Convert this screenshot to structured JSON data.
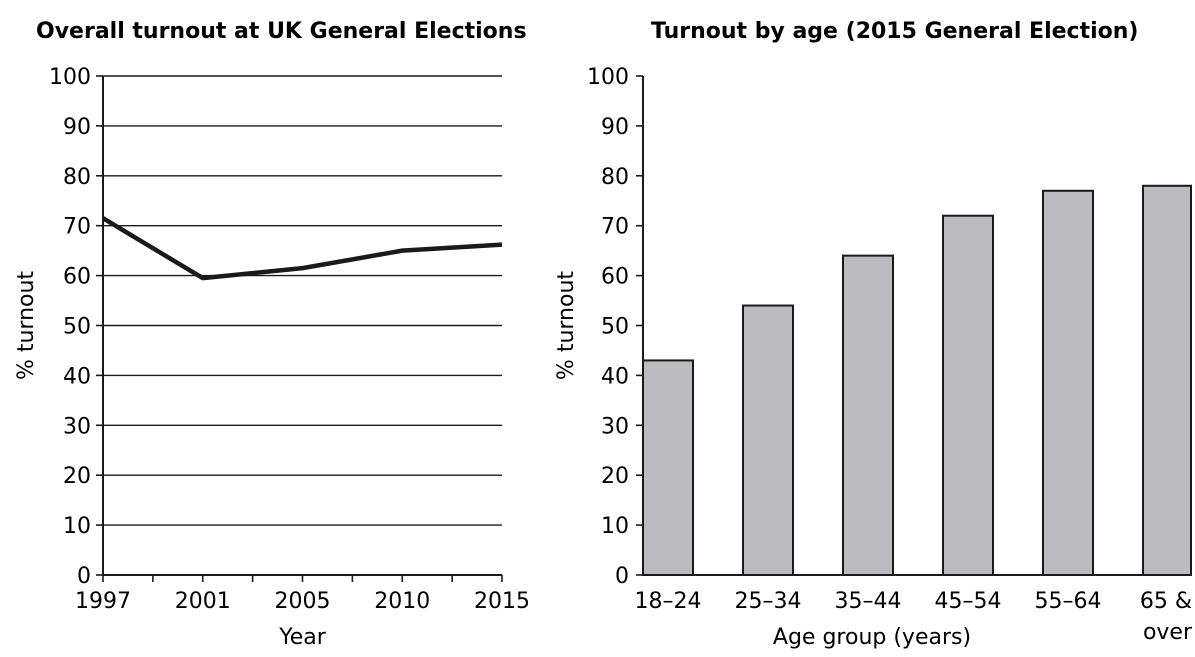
{
  "chart_data": [
    {
      "type": "line",
      "title": "Overall turnout at UK General Elections",
      "xlabel": "Year",
      "ylabel": "% turnout",
      "x": [
        "1997",
        "2001",
        "2005",
        "2010",
        "2015"
      ],
      "series": [
        {
          "values": [
            71.5,
            59.5,
            61.5,
            65.0,
            66.2
          ]
        }
      ],
      "ylim": [
        0,
        100
      ],
      "yticks": [
        "0",
        "10",
        "20",
        "30",
        "40",
        "50",
        "60",
        "70",
        "80",
        "90",
        "100"
      ],
      "grid": true,
      "colors": {
        "line": "#1a1a1a",
        "grid": "#1a1a1a"
      }
    },
    {
      "type": "bar",
      "title": "Turnout by age (2015 General Election)",
      "xlabel": "Age group (years)",
      "ylabel": "% turnout",
      "categories": [
        [
          "18–24"
        ],
        [
          "25–34"
        ],
        [
          "35–44"
        ],
        [
          "45–54"
        ],
        [
          "55–64"
        ],
        [
          "65 &",
          "over"
        ]
      ],
      "values": [
        43,
        54,
        64,
        72,
        77,
        78
      ],
      "ylim": [
        0,
        100
      ],
      "yticks": [
        "0",
        "10",
        "20",
        "30",
        "40",
        "50",
        "60",
        "70",
        "80",
        "90",
        "100"
      ],
      "grid": false,
      "colors": {
        "bar": "#bcbcc0",
        "outline": "#1a1a1a"
      }
    }
  ]
}
